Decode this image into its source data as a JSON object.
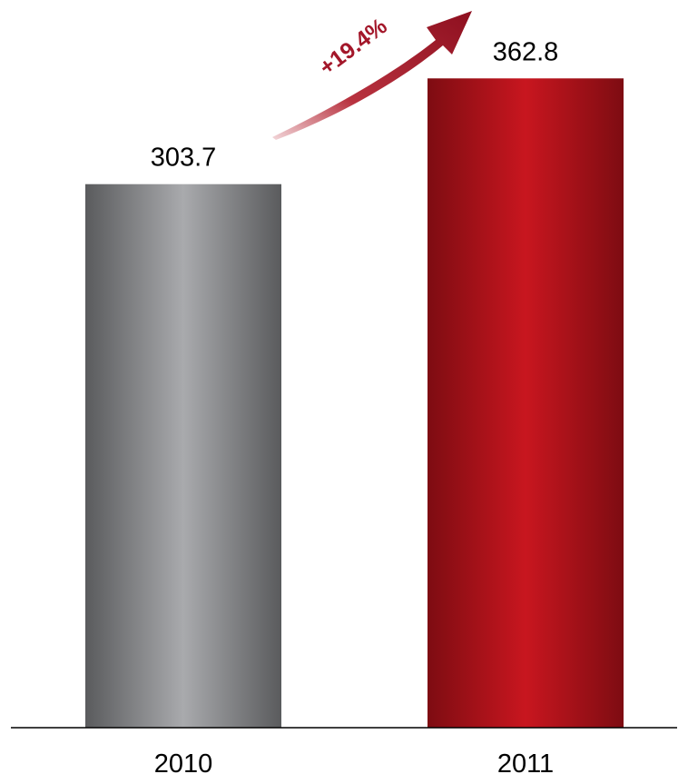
{
  "chart_data": {
    "type": "bar",
    "title": "",
    "xlabel": "",
    "ylabel": "",
    "categories": [
      "2010",
      "2011"
    ],
    "values": [
      303.7,
      362.8
    ],
    "value_labels": [
      "303.7",
      "362.8"
    ],
    "ylim": [
      0,
      400
    ],
    "grid": false,
    "legend": "none",
    "annotation": {
      "text": "+19.4%",
      "style": "curved-arrow",
      "color": "#a3172a"
    },
    "bar_styles": [
      {
        "edge": "#5a5b5d",
        "center": "#a9aaad"
      },
      {
        "edge": "#7e0c12",
        "center": "#c8161f"
      }
    ],
    "axis_color": "#000000"
  }
}
